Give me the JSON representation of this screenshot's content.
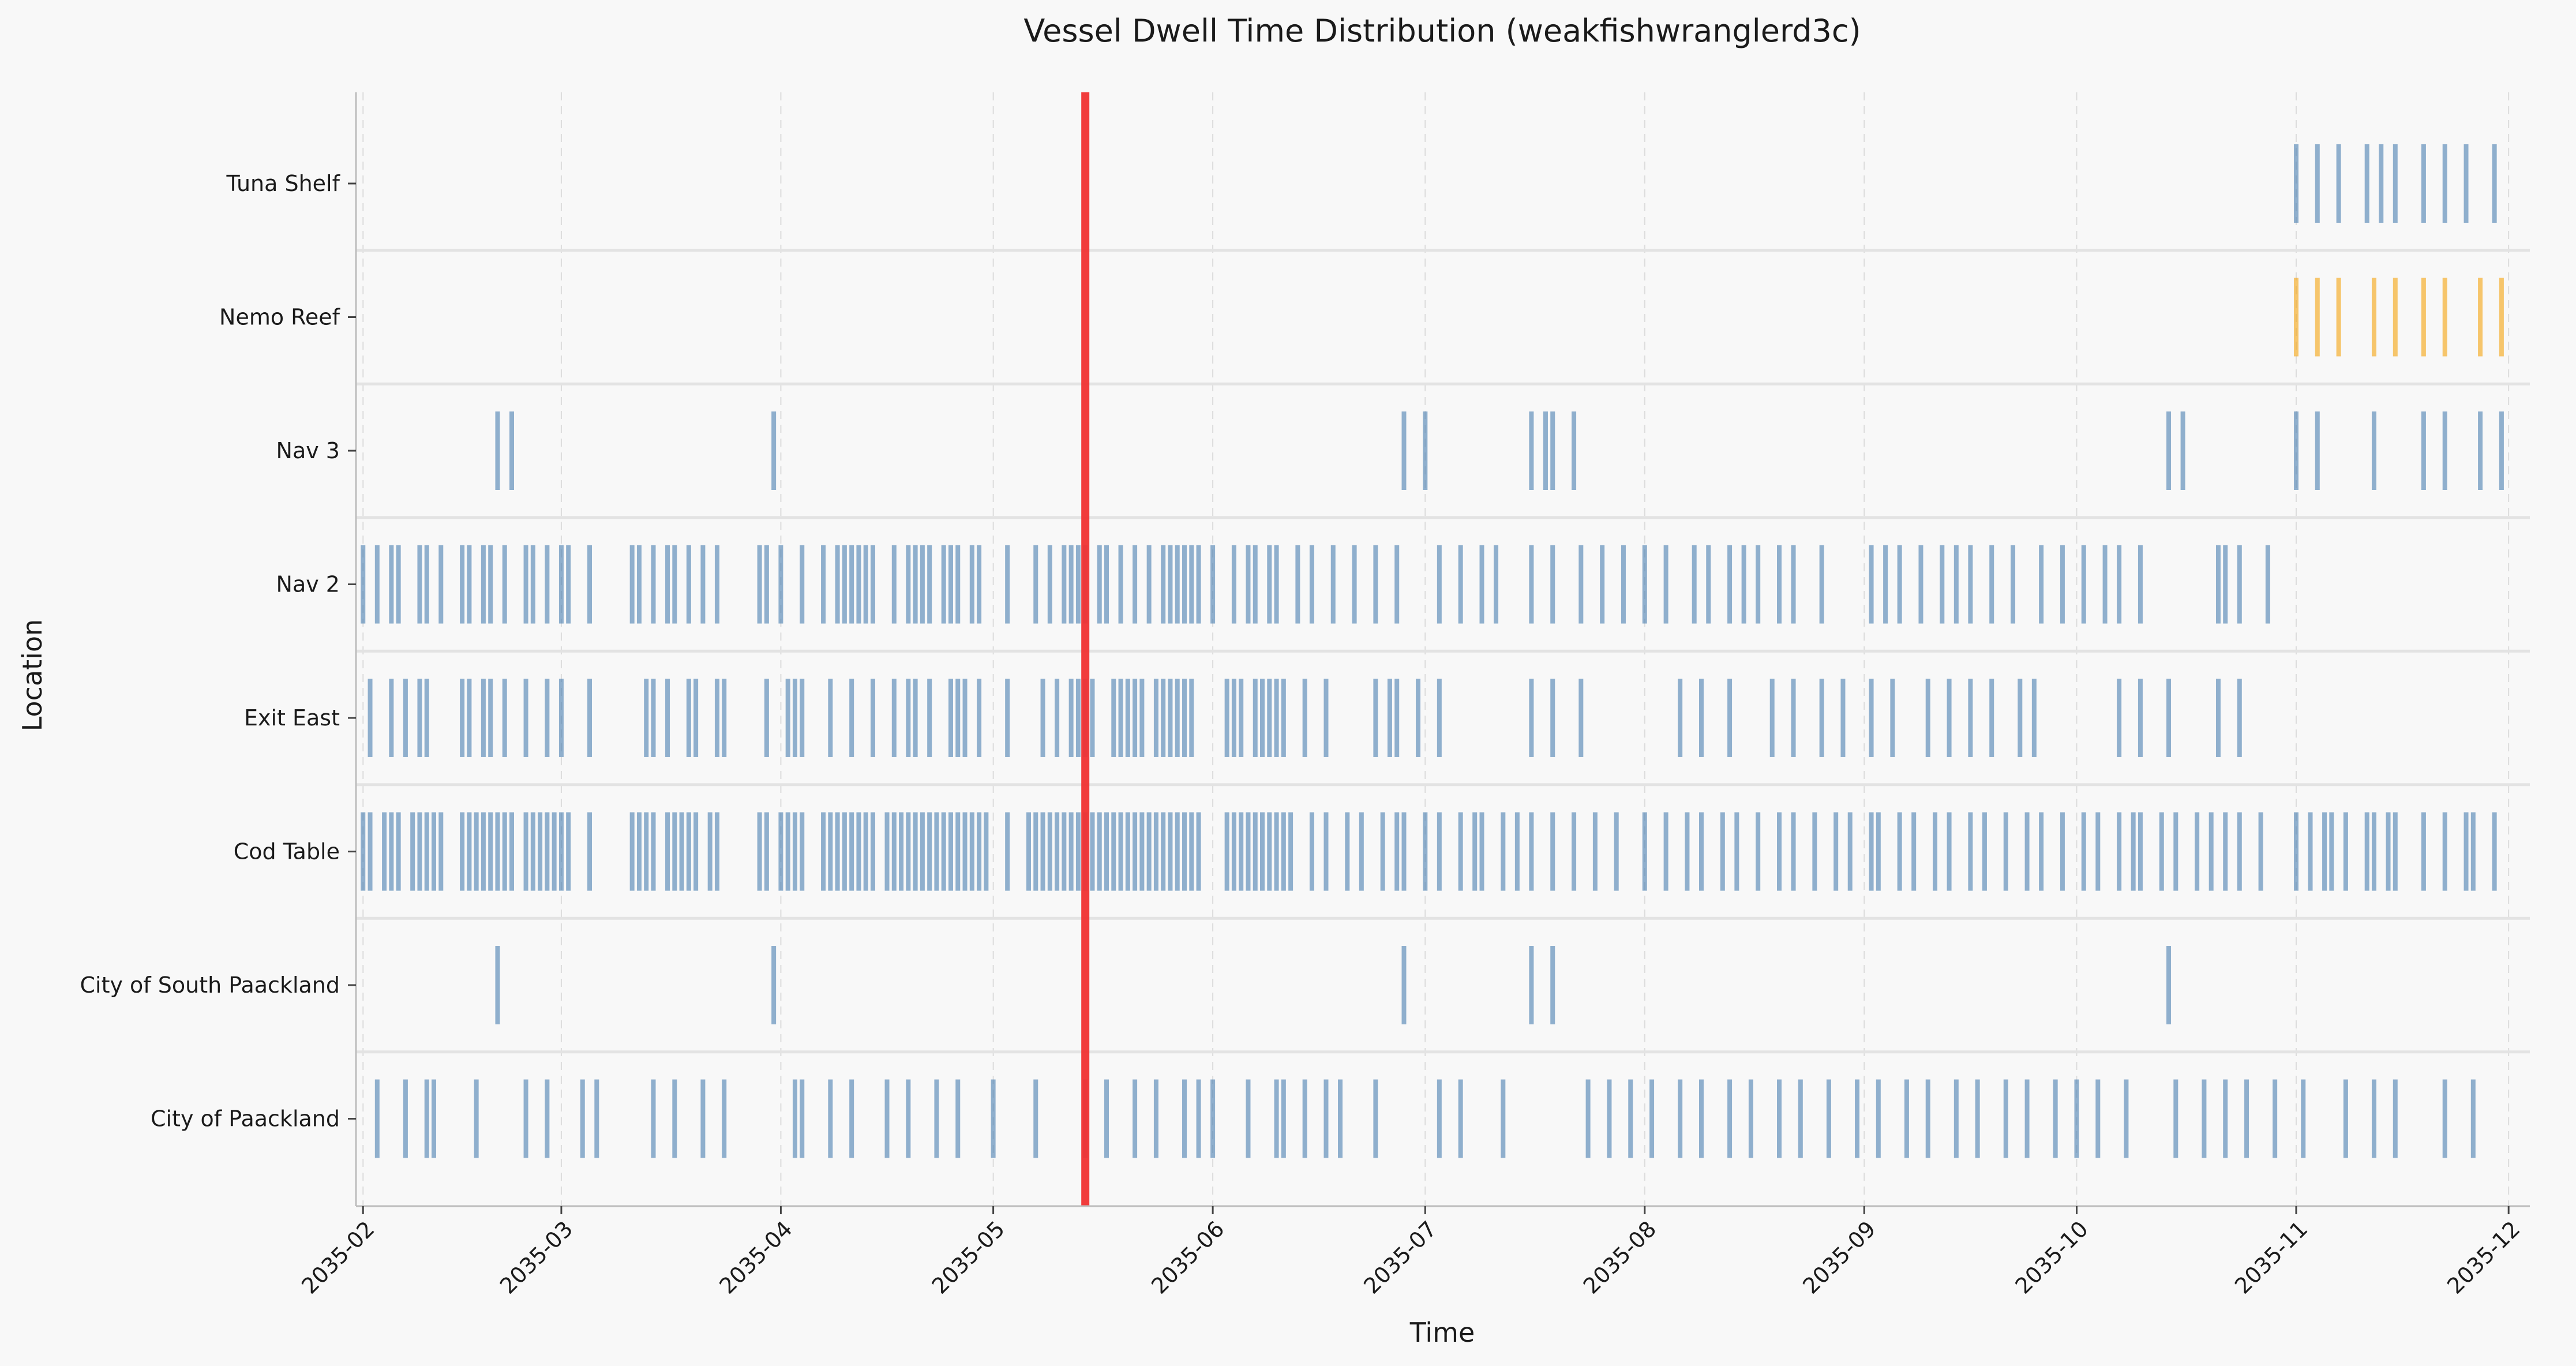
{
  "chart_data": {
    "type": "event-strip",
    "title": "Vessel Dwell Time Distribution (weakfishwranglerd3c)",
    "xlabel": "Time",
    "ylabel": "Location",
    "xlim": [
      "2035-01-31",
      "2035-12-04"
    ],
    "x_ticks": [
      "2035-02",
      "2035-03",
      "2035-04",
      "2035-05",
      "2035-06",
      "2035-07",
      "2035-08",
      "2035-09",
      "2035-10",
      "2035-11",
      "2035-12"
    ],
    "grid": "vertical dashed",
    "colors": {
      "default": "#4a7fb0",
      "nemo_reef": "#f5a40d",
      "marker": "#f03232",
      "background": "#f8f8f8"
    },
    "marker_date": "2035-05-14",
    "locations": [
      {
        "name": "Tuna Shelf",
        "color": "#4a7fb0",
        "events": [
          "2035-11-01",
          "2035-11-04",
          "2035-11-07",
          "2035-11-11",
          "2035-11-13",
          "2035-11-15",
          "2035-11-19",
          "2035-11-22",
          "2035-11-25",
          "2035-11-29"
        ]
      },
      {
        "name": "Nemo Reef",
        "color": "#f5a40d",
        "events": [
          "2035-11-01",
          "2035-11-04",
          "2035-11-07",
          "2035-11-12",
          "2035-11-15",
          "2035-11-19",
          "2035-11-22",
          "2035-11-27",
          "2035-11-30"
        ]
      },
      {
        "name": "Nav 3",
        "color": "#4a7fb0",
        "events": [
          "2035-02-20",
          "2035-02-22",
          "2035-03-31",
          "2035-06-28",
          "2035-07-01",
          "2035-07-16",
          "2035-07-18",
          "2035-07-19",
          "2035-07-22",
          "2035-10-14",
          "2035-10-16",
          "2035-11-01",
          "2035-11-04",
          "2035-11-12",
          "2035-11-19",
          "2035-11-22",
          "2035-11-27",
          "2035-11-30"
        ]
      },
      {
        "name": "Nav 2",
        "color": "#4a7fb0",
        "events": [
          "2035-02-01",
          "2035-02-03",
          "2035-02-05",
          "2035-02-06",
          "2035-02-09",
          "2035-02-10",
          "2035-02-12",
          "2035-02-15",
          "2035-02-16",
          "2035-02-18",
          "2035-02-19",
          "2035-02-21",
          "2035-02-24",
          "2035-02-25",
          "2035-02-27",
          "2035-03-01",
          "2035-03-02",
          "2035-03-05",
          "2035-03-11",
          "2035-03-12",
          "2035-03-14",
          "2035-03-16",
          "2035-03-17",
          "2035-03-19",
          "2035-03-21",
          "2035-03-23",
          "2035-03-29",
          "2035-03-30",
          "2035-04-01",
          "2035-04-04",
          "2035-04-07",
          "2035-04-09",
          "2035-04-10",
          "2035-04-11",
          "2035-04-12",
          "2035-04-13",
          "2035-04-14",
          "2035-04-17",
          "2035-04-19",
          "2035-04-20",
          "2035-04-21",
          "2035-04-22",
          "2035-04-24",
          "2035-04-25",
          "2035-04-26",
          "2035-04-28",
          "2035-04-29",
          "2035-05-03",
          "2035-05-07",
          "2035-05-09",
          "2035-05-11",
          "2035-05-12",
          "2035-05-13",
          "2035-05-14",
          "2035-05-16",
          "2035-05-17",
          "2035-05-19",
          "2035-05-21",
          "2035-05-23",
          "2035-05-25",
          "2035-05-26",
          "2035-05-27",
          "2035-05-28",
          "2035-05-29",
          "2035-05-30",
          "2035-06-01",
          "2035-06-04",
          "2035-06-06",
          "2035-06-07",
          "2035-06-09",
          "2035-06-10",
          "2035-06-13",
          "2035-06-15",
          "2035-06-18",
          "2035-06-21",
          "2035-06-24",
          "2035-06-27",
          "2035-07-03",
          "2035-07-06",
          "2035-07-09",
          "2035-07-11",
          "2035-07-16",
          "2035-07-19",
          "2035-07-23",
          "2035-07-26",
          "2035-07-29",
          "2035-08-01",
          "2035-08-04",
          "2035-08-08",
          "2035-08-10",
          "2035-08-13",
          "2035-08-15",
          "2035-08-17",
          "2035-08-20",
          "2035-08-22",
          "2035-08-26",
          "2035-09-02",
          "2035-09-04",
          "2035-09-06",
          "2035-09-09",
          "2035-09-12",
          "2035-09-14",
          "2035-09-16",
          "2035-09-19",
          "2035-09-22",
          "2035-09-26",
          "2035-09-29",
          "2035-10-02",
          "2035-10-05",
          "2035-10-07",
          "2035-10-10",
          "2035-10-21",
          "2035-10-22",
          "2035-10-24",
          "2035-10-28"
        ]
      },
      {
        "name": "Exit East",
        "color": "#4a7fb0",
        "events": [
          "2035-02-02",
          "2035-02-05",
          "2035-02-07",
          "2035-02-09",
          "2035-02-10",
          "2035-02-15",
          "2035-02-16",
          "2035-02-18",
          "2035-02-19",
          "2035-02-21",
          "2035-02-24",
          "2035-02-27",
          "2035-03-01",
          "2035-03-05",
          "2035-03-13",
          "2035-03-14",
          "2035-03-16",
          "2035-03-19",
          "2035-03-20",
          "2035-03-23",
          "2035-03-24",
          "2035-03-30",
          "2035-04-02",
          "2035-04-03",
          "2035-04-04",
          "2035-04-08",
          "2035-04-11",
          "2035-04-14",
          "2035-04-17",
          "2035-04-19",
          "2035-04-20",
          "2035-04-22",
          "2035-04-25",
          "2035-04-26",
          "2035-04-27",
          "2035-04-29",
          "2035-05-03",
          "2035-05-08",
          "2035-05-10",
          "2035-05-12",
          "2035-05-13",
          "2035-05-14",
          "2035-05-15",
          "2035-05-18",
          "2035-05-19",
          "2035-05-20",
          "2035-05-21",
          "2035-05-22",
          "2035-05-24",
          "2035-05-25",
          "2035-05-26",
          "2035-05-27",
          "2035-05-28",
          "2035-05-29",
          "2035-06-03",
          "2035-06-04",
          "2035-06-05",
          "2035-06-07",
          "2035-06-08",
          "2035-06-09",
          "2035-06-10",
          "2035-06-11",
          "2035-06-14",
          "2035-06-17",
          "2035-06-24",
          "2035-06-26",
          "2035-06-27",
          "2035-06-30",
          "2035-07-03",
          "2035-07-16",
          "2035-07-19",
          "2035-07-23",
          "2035-08-06",
          "2035-08-09",
          "2035-08-13",
          "2035-08-19",
          "2035-08-22",
          "2035-08-26",
          "2035-08-29",
          "2035-09-02",
          "2035-09-05",
          "2035-09-10",
          "2035-09-13",
          "2035-09-16",
          "2035-09-19",
          "2035-09-23",
          "2035-09-25",
          "2035-10-07",
          "2035-10-10",
          "2035-10-14",
          "2035-10-21",
          "2035-10-24"
        ]
      },
      {
        "name": "Cod Table",
        "color": "#4a7fb0",
        "events": [
          "2035-02-01",
          "2035-02-02",
          "2035-02-04",
          "2035-02-05",
          "2035-02-06",
          "2035-02-08",
          "2035-02-09",
          "2035-02-10",
          "2035-02-11",
          "2035-02-12",
          "2035-02-15",
          "2035-02-16",
          "2035-02-17",
          "2035-02-18",
          "2035-02-19",
          "2035-02-20",
          "2035-02-21",
          "2035-02-22",
          "2035-02-24",
          "2035-02-25",
          "2035-02-26",
          "2035-02-27",
          "2035-02-28",
          "2035-03-01",
          "2035-03-02",
          "2035-03-05",
          "2035-03-11",
          "2035-03-12",
          "2035-03-13",
          "2035-03-14",
          "2035-03-16",
          "2035-03-17",
          "2035-03-18",
          "2035-03-19",
          "2035-03-20",
          "2035-03-22",
          "2035-03-23",
          "2035-03-29",
          "2035-03-30",
          "2035-04-01",
          "2035-04-02",
          "2035-04-03",
          "2035-04-04",
          "2035-04-07",
          "2035-04-08",
          "2035-04-09",
          "2035-04-10",
          "2035-04-11",
          "2035-04-12",
          "2035-04-13",
          "2035-04-14",
          "2035-04-16",
          "2035-04-17",
          "2035-04-18",
          "2035-04-19",
          "2035-04-20",
          "2035-04-21",
          "2035-04-22",
          "2035-04-23",
          "2035-04-24",
          "2035-04-25",
          "2035-04-26",
          "2035-04-27",
          "2035-04-28",
          "2035-04-29",
          "2035-04-30",
          "2035-05-03",
          "2035-05-06",
          "2035-05-07",
          "2035-05-08",
          "2035-05-09",
          "2035-05-10",
          "2035-05-11",
          "2035-05-12",
          "2035-05-13",
          "2035-05-14",
          "2035-05-15",
          "2035-05-16",
          "2035-05-17",
          "2035-05-18",
          "2035-05-19",
          "2035-05-20",
          "2035-05-21",
          "2035-05-22",
          "2035-05-23",
          "2035-05-24",
          "2035-05-25",
          "2035-05-26",
          "2035-05-27",
          "2035-05-28",
          "2035-05-29",
          "2035-05-30",
          "2035-06-03",
          "2035-06-04",
          "2035-06-05",
          "2035-06-06",
          "2035-06-07",
          "2035-06-08",
          "2035-06-09",
          "2035-06-10",
          "2035-06-11",
          "2035-06-12",
          "2035-06-15",
          "2035-06-17",
          "2035-06-20",
          "2035-06-22",
          "2035-06-25",
          "2035-06-27",
          "2035-06-28",
          "2035-07-01",
          "2035-07-03",
          "2035-07-06",
          "2035-07-08",
          "2035-07-09",
          "2035-07-12",
          "2035-07-14",
          "2035-07-16",
          "2035-07-19",
          "2035-07-22",
          "2035-07-25",
          "2035-07-28",
          "2035-08-01",
          "2035-08-04",
          "2035-08-07",
          "2035-08-09",
          "2035-08-12",
          "2035-08-14",
          "2035-08-17",
          "2035-08-20",
          "2035-08-22",
          "2035-08-25",
          "2035-08-28",
          "2035-08-30",
          "2035-09-02",
          "2035-09-03",
          "2035-09-06",
          "2035-09-08",
          "2035-09-11",
          "2035-09-13",
          "2035-09-16",
          "2035-09-18",
          "2035-09-21",
          "2035-09-24",
          "2035-09-26",
          "2035-09-29",
          "2035-10-02",
          "2035-10-04",
          "2035-10-07",
          "2035-10-09",
          "2035-10-10",
          "2035-10-13",
          "2035-10-15",
          "2035-10-18",
          "2035-10-20",
          "2035-10-22",
          "2035-10-24",
          "2035-10-27",
          "2035-11-01",
          "2035-11-03",
          "2035-11-05",
          "2035-11-06",
          "2035-11-08",
          "2035-11-11",
          "2035-11-12",
          "2035-11-14",
          "2035-11-15",
          "2035-11-19",
          "2035-11-22",
          "2035-11-25",
          "2035-11-26",
          "2035-11-29"
        ]
      },
      {
        "name": "City of South Paackland",
        "color": "#4a7fb0",
        "events": [
          "2035-02-20",
          "2035-03-31",
          "2035-06-28",
          "2035-07-16",
          "2035-07-19",
          "2035-10-14"
        ]
      },
      {
        "name": "City of Paackland",
        "color": "#4a7fb0",
        "events": [
          "2035-02-03",
          "2035-02-07",
          "2035-02-10",
          "2035-02-11",
          "2035-02-17",
          "2035-02-24",
          "2035-02-27",
          "2035-03-04",
          "2035-03-06",
          "2035-03-14",
          "2035-03-17",
          "2035-03-21",
          "2035-03-24",
          "2035-04-03",
          "2035-04-04",
          "2035-04-08",
          "2035-04-11",
          "2035-04-16",
          "2035-04-19",
          "2035-04-23",
          "2035-04-26",
          "2035-05-01",
          "2035-05-07",
          "2035-05-14",
          "2035-05-17",
          "2035-05-21",
          "2035-05-24",
          "2035-05-28",
          "2035-05-30",
          "2035-06-01",
          "2035-06-06",
          "2035-06-10",
          "2035-06-11",
          "2035-06-14",
          "2035-06-17",
          "2035-06-19",
          "2035-06-24",
          "2035-07-03",
          "2035-07-06",
          "2035-07-12",
          "2035-07-24",
          "2035-07-27",
          "2035-07-30",
          "2035-08-02",
          "2035-08-06",
          "2035-08-09",
          "2035-08-13",
          "2035-08-16",
          "2035-08-20",
          "2035-08-23",
          "2035-08-27",
          "2035-08-31",
          "2035-09-03",
          "2035-09-07",
          "2035-09-10",
          "2035-09-14",
          "2035-09-17",
          "2035-09-21",
          "2035-09-24",
          "2035-09-28",
          "2035-10-01",
          "2035-10-04",
          "2035-10-08",
          "2035-10-15",
          "2035-10-19",
          "2035-10-22",
          "2035-10-25",
          "2035-10-29",
          "2035-11-02",
          "2035-11-08",
          "2035-11-12",
          "2035-11-15",
          "2035-11-22",
          "2035-11-26"
        ]
      }
    ]
  }
}
